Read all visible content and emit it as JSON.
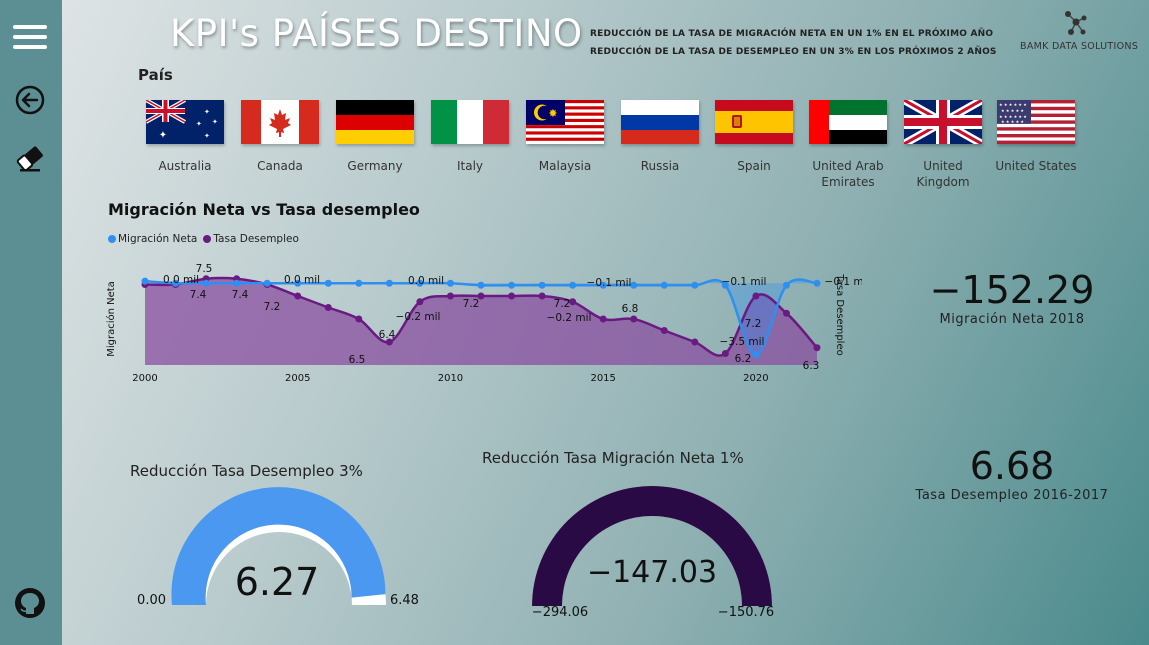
{
  "header": {
    "title": "KPI's PAÍSES DESTINO",
    "goals": [
      "REDUCCIÓN DE LA TASA DE MIGRACIÓN NETA EN UN 1% EN EL PRÓXIMO AÑO",
      "REDUCCIÓN DE LA TASA DE DESEMPLEO EN UN 3% EN LOS PRÓXIMOS 2 AÑOS"
    ],
    "logo_text": "BAMK DATA SOLUTIONS"
  },
  "sidebar": {
    "icons": [
      "menu-icon",
      "back-arrow-icon",
      "eraser-icon",
      "github-icon"
    ]
  },
  "filter": {
    "header": "País",
    "countries": [
      {
        "name": "Australia"
      },
      {
        "name": "Canada"
      },
      {
        "name": "Germany"
      },
      {
        "name": "Italy"
      },
      {
        "name": "Malaysia"
      },
      {
        "name": "Russia"
      },
      {
        "name": "Spain"
      },
      {
        "name": "United Arab Emirates"
      },
      {
        "name": "United Kingdom"
      },
      {
        "name": "United States"
      }
    ]
  },
  "kpis": {
    "migration": {
      "value": "−152.29",
      "label": "Migración Neta 2018"
    },
    "unemployment": {
      "value": "6.68",
      "label": "Tasa Desempleo 2016-2017"
    }
  },
  "gauges": {
    "unemployment": {
      "title": "Reducción Tasa Desempleo 3%",
      "value_label": "6.27",
      "min_label": "0.00",
      "max_label": "6.48",
      "min": 0,
      "max": 6.48,
      "value": 6.27,
      "color": "#4a98ef"
    },
    "migration": {
      "title": "Reducción Tasa Migración Neta 1%",
      "value_label": "−147.03",
      "min_label": "−294.06",
      "max_label": "−150.76",
      "min": -294.06,
      "max": -150.76,
      "value": -147.03,
      "color": "#2a0a45"
    }
  },
  "colors": {
    "migration": "#2f8ff0",
    "unemployment": "#6a1b82"
  },
  "chart_data": {
    "type": "line",
    "title": "Migración Neta vs Tasa desempleo",
    "xlabel": "",
    "ylabel_left": "Migración Neta",
    "ylabel_right": "Tasa Desempleo",
    "x_ticks": [
      "2000",
      "2005",
      "2010",
      "2015",
      "2020"
    ],
    "x": [
      2000,
      2001,
      2002,
      2003,
      2004,
      2005,
      2006,
      2007,
      2008,
      2009,
      2010,
      2011,
      2012,
      2013,
      2014,
      2015,
      2016,
      2017,
      2018,
      2019,
      2020,
      2021,
      2022
    ],
    "series": [
      {
        "name": "Migración Neta",
        "axis": "left",
        "values": [
          0.1,
          0.0,
          0.0,
          0.0,
          0.0,
          0.0,
          0.0,
          0.0,
          0.0,
          0.0,
          0.0,
          -0.1,
          -0.1,
          -0.1,
          -0.1,
          -0.1,
          -0.1,
          -0.1,
          -0.1,
          -0.1,
          -3.5,
          -0.1,
          0.0
        ]
      },
      {
        "name": "Tasa Desempleo",
        "axis": "right",
        "values": [
          7.4,
          7.4,
          7.5,
          7.5,
          7.4,
          7.2,
          7.0,
          6.8,
          6.4,
          7.1,
          7.2,
          7.2,
          7.2,
          7.2,
          7.1,
          6.8,
          6.8,
          6.6,
          6.4,
          6.2,
          7.2,
          6.9,
          6.3
        ]
      }
    ],
    "data_labels": [
      {
        "text": "0.1 mil"
      },
      {
        "text": "0.0 mil"
      },
      {
        "text": "0.0 mil"
      },
      {
        "text": "0.0 mil"
      },
      {
        "text": "−0.1 mil"
      },
      {
        "text": "−0.1 mil"
      },
      {
        "text": "−0.1 mil"
      },
      {
        "text": "0.0 mil"
      },
      {
        "text": "−0.2 mil"
      },
      {
        "text": "−0.2 mil"
      },
      {
        "text": "−3.5 mil"
      },
      {
        "text": "0.0 mil"
      },
      {
        "text": "7.5"
      },
      {
        "text": "7.4"
      },
      {
        "text": "7.4"
      },
      {
        "text": "7.2"
      },
      {
        "text": "6.5"
      },
      {
        "text": "6.4"
      },
      {
        "text": "7.2"
      },
      {
        "text": "7.2"
      },
      {
        "text": "6.8"
      },
      {
        "text": "7.2"
      },
      {
        "text": "6.2"
      },
      {
        "text": "6.3"
      }
    ],
    "ylim_left": [
      -4,
      0.5
    ],
    "ylim_right": [
      6.0,
      7.6
    ],
    "legend": "top-left",
    "grid": false
  }
}
